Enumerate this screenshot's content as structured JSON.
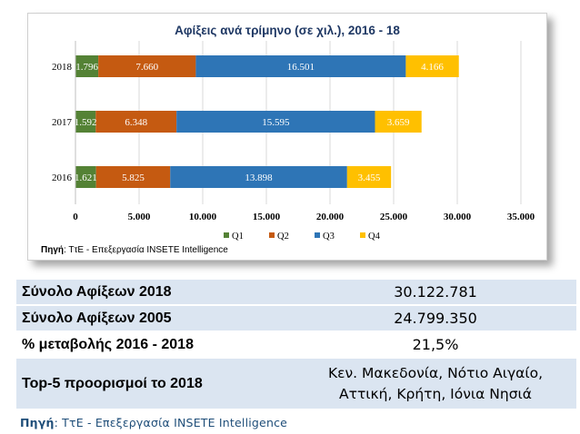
{
  "chart_data": {
    "type": "bar",
    "orientation": "horizontal",
    "stacked": true,
    "title": "Αφίξεις ανά τρίμηνο (σε χιλ.), 2016 - 18",
    "categories": [
      "2018",
      "2017",
      "2016"
    ],
    "series": [
      {
        "name": "Q1",
        "color": "#548235",
        "values": [
          1796,
          1592,
          1621
        ],
        "labels": [
          "1.796",
          "1.592",
          "1.621"
        ]
      },
      {
        "name": "Q2",
        "color": "#c55a11",
        "values": [
          7660,
          6348,
          5825
        ],
        "labels": [
          "7.660",
          "6.348",
          "5.825"
        ]
      },
      {
        "name": "Q3",
        "color": "#2e75b6",
        "values": [
          16501,
          15595,
          13898
        ],
        "labels": [
          "16.501",
          "15.595",
          "13.898"
        ]
      },
      {
        "name": "Q4",
        "color": "#ffc000",
        "values": [
          4166,
          3659,
          3455
        ],
        "labels": [
          "4.166",
          "3.659",
          "3.455"
        ]
      }
    ],
    "xlim": [
      0,
      35000
    ],
    "xticks": [
      0,
      5000,
      10000,
      15000,
      20000,
      25000,
      30000,
      35000
    ],
    "xtick_labels": [
      "0",
      "5.000",
      "10.000",
      "15.000",
      "20.000",
      "25.000",
      "30.000",
      "35.000"
    ],
    "grid": true,
    "legend": "bottom-center",
    "source_label": "Πηγή",
    "source_text": ": ΤτΕ - Επεξεργασία INSETE Intelligence"
  },
  "table": {
    "rows": [
      {
        "label": "Σύνολο Αφίξεων 2018",
        "value": "30.122.781"
      },
      {
        "label": "Σύνολο Αφίξεων 2005",
        "value": "24.799.350"
      },
      {
        "label": "% μεταβολής 2016 - 2018",
        "value": "21,5%"
      },
      {
        "label": "Top-5 προορισμοί το 2018",
        "value_line1": "Κεν. Μακεδονία, Νότιο Αιγαίο,",
        "value_line2": "Αττική, Κρήτη, Ιόνια Νησιά"
      }
    ]
  },
  "footer": {
    "source_label": "Πηγή",
    "source_text": ": ΤτΕ - Επεξεργασία INSETE Intelligence"
  },
  "colors": {
    "title": "#1f3864",
    "table_bg": "#dbe5f1",
    "footer_text": "#1f4e79"
  }
}
